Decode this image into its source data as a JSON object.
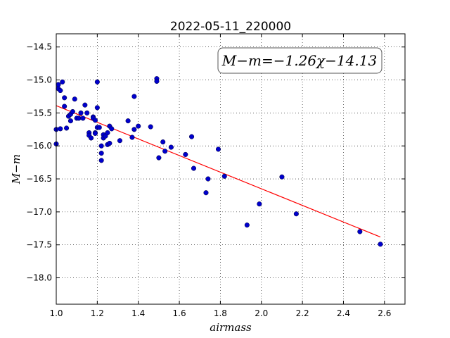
{
  "chart_data": {
    "type": "scatter",
    "title": "2022-05-11_220000",
    "xlabel": "airmass",
    "ylabel": "M−m",
    "xlim": [
      1.0,
      2.7
    ],
    "ylim": [
      -18.4,
      -14.3
    ],
    "y_inverted": true,
    "grid": true,
    "xticks": [
      "1.0",
      "1.2",
      "1.4",
      "1.6",
      "1.8",
      "2.0",
      "2.2",
      "2.4",
      "2.6"
    ],
    "yticks": [
      "−14.5",
      "−15.0",
      "−15.5",
      "−16.0",
      "−16.5",
      "−17.0",
      "−17.5",
      "−18.0"
    ],
    "annotation": "M−m=−1.26χ−14.13",
    "fit": {
      "slope": -1.26,
      "intercept": -14.13,
      "x_range": [
        1.0,
        2.58
      ],
      "color": "#ff0000"
    },
    "point_color": "#0000cc",
    "points": [
      [
        1.0,
        -15.97
      ],
      [
        1.0,
        -15.75
      ],
      [
        1.01,
        -15.13
      ],
      [
        1.01,
        -15.07
      ],
      [
        1.02,
        -15.16
      ],
      [
        1.02,
        -15.74
      ],
      [
        1.03,
        -15.03
      ],
      [
        1.04,
        -15.27
      ],
      [
        1.04,
        -15.4
      ],
      [
        1.05,
        -15.73
      ],
      [
        1.06,
        -15.55
      ],
      [
        1.07,
        -15.52
      ],
      [
        1.07,
        -15.62
      ],
      [
        1.08,
        -15.48
      ],
      [
        1.09,
        -15.29
      ],
      [
        1.1,
        -15.58
      ],
      [
        1.11,
        -15.58
      ],
      [
        1.12,
        -15.5
      ],
      [
        1.13,
        -15.58
      ],
      [
        1.14,
        -15.38
      ],
      [
        1.15,
        -15.5
      ],
      [
        1.16,
        -15.8
      ],
      [
        1.16,
        -15.84
      ],
      [
        1.17,
        -15.88
      ],
      [
        1.18,
        -15.56
      ],
      [
        1.18,
        -15.58
      ],
      [
        1.19,
        -15.8
      ],
      [
        1.19,
        -15.81
      ],
      [
        1.19,
        -15.61
      ],
      [
        1.2,
        -15.72
      ],
      [
        1.2,
        -15.03
      ],
      [
        1.2,
        -15.42
      ],
      [
        1.21,
        -15.72
      ],
      [
        1.22,
        -16.0
      ],
      [
        1.22,
        -16.11
      ],
      [
        1.22,
        -16.22
      ],
      [
        1.23,
        -15.83
      ],
      [
        1.23,
        -15.88
      ],
      [
        1.24,
        -15.85
      ],
      [
        1.25,
        -15.8
      ],
      [
        1.25,
        -15.98
      ],
      [
        1.26,
        -15.96
      ],
      [
        1.26,
        -15.7
      ],
      [
        1.27,
        -15.74
      ],
      [
        1.31,
        -15.92
      ],
      [
        1.35,
        -15.62
      ],
      [
        1.37,
        -15.87
      ],
      [
        1.38,
        -15.25
      ],
      [
        1.38,
        -15.75
      ],
      [
        1.4,
        -15.7
      ],
      [
        1.46,
        -15.71
      ],
      [
        1.49,
        -14.98
      ],
      [
        1.49,
        -15.02
      ],
      [
        1.5,
        -16.18
      ],
      [
        1.52,
        -15.94
      ],
      [
        1.53,
        -16.08
      ],
      [
        1.56,
        -16.02
      ],
      [
        1.63,
        -16.13
      ],
      [
        1.66,
        -15.86
      ],
      [
        1.67,
        -16.34
      ],
      [
        1.73,
        -16.71
      ],
      [
        1.74,
        -16.5
      ],
      [
        1.79,
        -16.05
      ],
      [
        1.82,
        -16.46
      ],
      [
        1.93,
        -17.2
      ],
      [
        1.99,
        -16.88
      ],
      [
        2.1,
        -16.47
      ],
      [
        2.17,
        -17.03
      ],
      [
        2.48,
        -17.3
      ],
      [
        2.58,
        -17.49
      ]
    ]
  }
}
